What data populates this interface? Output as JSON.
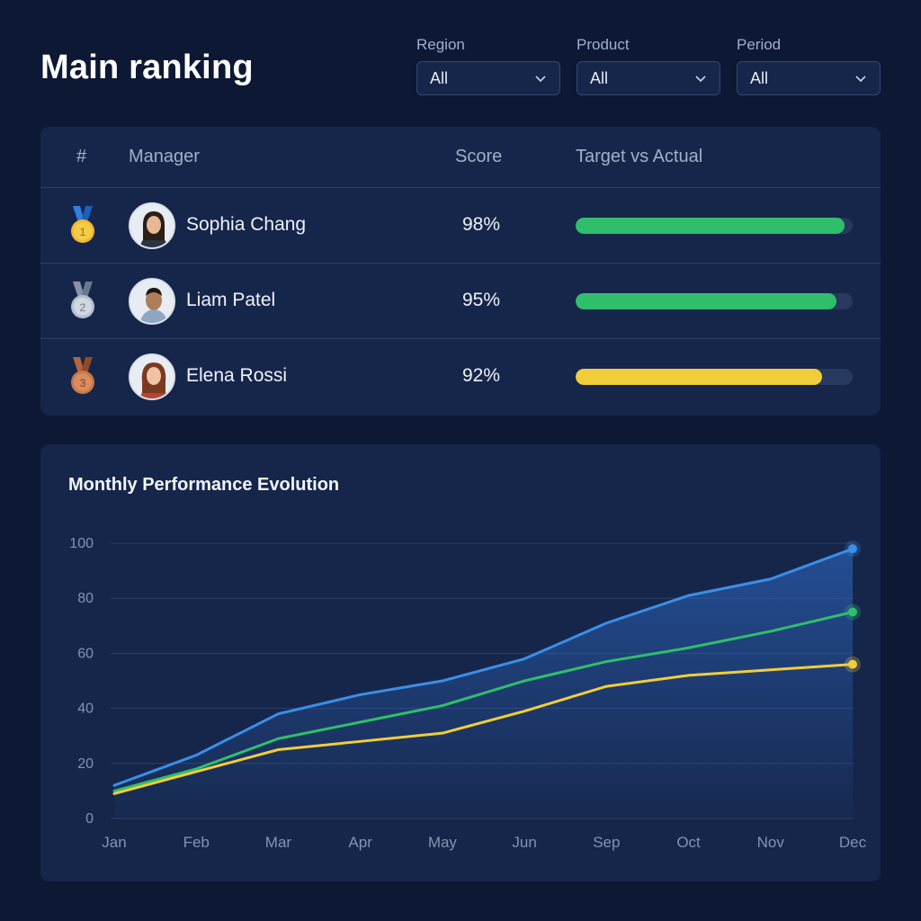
{
  "header": {
    "title": "Main ranking"
  },
  "filters": [
    {
      "label": "Region",
      "value": "All"
    },
    {
      "label": "Product",
      "value": "All"
    },
    {
      "label": "Period",
      "value": "All"
    }
  ],
  "ranking": {
    "columns": {
      "rank": "#",
      "manager": "Manager",
      "score": "Score",
      "target_vs_actual": "Target vs Actual"
    },
    "rows": [
      {
        "rank": "1",
        "medal": "gold-medal-icon",
        "name": "Sophia Chang",
        "score": "98%",
        "progress": 0.97,
        "bar_color": "#2fbf6a"
      },
      {
        "rank": "2",
        "medal": "silver-medal-icon",
        "name": "Liam Patel",
        "score": "95%",
        "progress": 0.94,
        "bar_color": "#2fbf6a"
      },
      {
        "rank": "3",
        "medal": "bronze-medal-icon",
        "name": "Elena Rossi",
        "score": "92%",
        "progress": 0.89,
        "bar_color": "#f2cd3a"
      }
    ]
  },
  "chart_data": {
    "type": "line",
    "title": "Monthly Performance Evolution",
    "categories": [
      "Jan",
      "Feb",
      "Mar",
      "Apr",
      "May",
      "Jun",
      "Sep",
      "Oct",
      "Nov",
      "Dec"
    ],
    "ylim": [
      0,
      100
    ],
    "yticks": [
      "0",
      "20",
      "40",
      "60",
      "80",
      "100"
    ],
    "grid": true,
    "series": [
      {
        "color": "#3a8fe8",
        "area": true,
        "values": [
          12,
          23,
          38,
          45,
          50,
          58,
          71,
          81,
          87,
          98
        ]
      },
      {
        "color": "#2fbf6a",
        "area": false,
        "values": [
          10,
          18,
          29,
          35,
          41,
          50,
          57,
          62,
          68,
          75
        ]
      },
      {
        "color": "#f2cd3a",
        "area": false,
        "values": [
          9,
          17,
          25,
          28,
          31,
          39,
          48,
          52,
          54,
          56
        ]
      }
    ]
  }
}
